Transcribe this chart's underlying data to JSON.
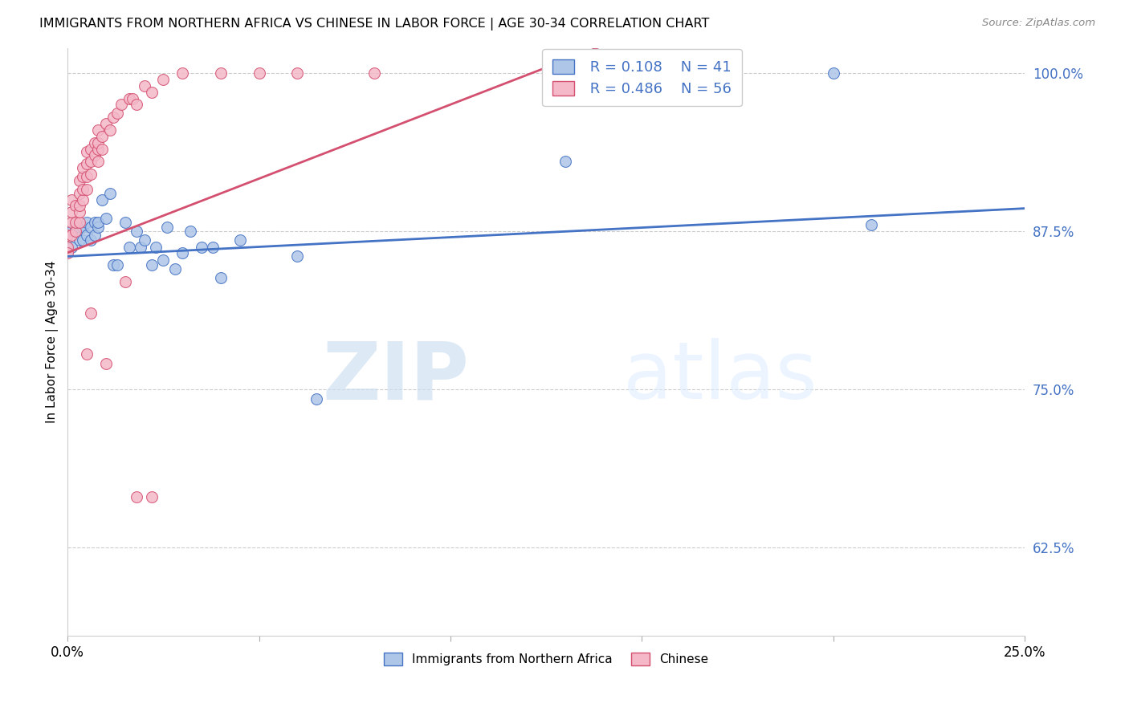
{
  "title": "IMMIGRANTS FROM NORTHERN AFRICA VS CHINESE IN LABOR FORCE | AGE 30-34 CORRELATION CHART",
  "source": "Source: ZipAtlas.com",
  "ylabel": "In Labor Force | Age 30-34",
  "xlim": [
    0.0,
    0.25
  ],
  "ylim": [
    0.555,
    1.02
  ],
  "yticks": [
    0.625,
    0.75,
    0.875,
    1.0
  ],
  "ytick_labels": [
    "62.5%",
    "75.0%",
    "87.5%",
    "100.0%"
  ],
  "xticks": [
    0.0,
    0.05,
    0.1,
    0.15,
    0.2,
    0.25
  ],
  "xtick_labels": [
    "0.0%",
    "",
    "",
    "",
    "",
    "25.0%"
  ],
  "blue_R": "R = 0.108",
  "blue_N": "N = 41",
  "pink_R": "R = 0.486",
  "pink_N": "N = 56",
  "blue_color": "#aec6e8",
  "pink_color": "#f4b8c8",
  "blue_line_color": "#4472c4",
  "pink_line_color": "#d45070",
  "legend_label_blue": "Immigrants from Northern Africa",
  "legend_label_pink": "Chinese",
  "watermark_zip": "ZIP",
  "watermark_atlas": "atlas",
  "blue_points_x": [
    0.001,
    0.001,
    0.002,
    0.003,
    0.003,
    0.004,
    0.004,
    0.005,
    0.005,
    0.006,
    0.006,
    0.007,
    0.007,
    0.008,
    0.008,
    0.009,
    0.01,
    0.011,
    0.012,
    0.013,
    0.015,
    0.016,
    0.018,
    0.019,
    0.02,
    0.022,
    0.023,
    0.025,
    0.026,
    0.028,
    0.03,
    0.032,
    0.035,
    0.038,
    0.04,
    0.045,
    0.06,
    0.065,
    0.13,
    0.2,
    0.21
  ],
  "blue_points_y": [
    0.862,
    0.875,
    0.878,
    0.868,
    0.878,
    0.868,
    0.878,
    0.872,
    0.882,
    0.878,
    0.868,
    0.882,
    0.872,
    0.878,
    0.882,
    0.9,
    0.885,
    0.905,
    0.848,
    0.848,
    0.882,
    0.862,
    0.875,
    0.862,
    0.868,
    0.848,
    0.862,
    0.852,
    0.878,
    0.845,
    0.858,
    0.875,
    0.862,
    0.862,
    0.838,
    0.868,
    0.855,
    0.742,
    0.93,
    1.0,
    0.88
  ],
  "pink_points_x": [
    0.0,
    0.0,
    0.0,
    0.001,
    0.001,
    0.001,
    0.001,
    0.002,
    0.002,
    0.002,
    0.003,
    0.003,
    0.003,
    0.003,
    0.003,
    0.004,
    0.004,
    0.004,
    0.004,
    0.005,
    0.005,
    0.005,
    0.005,
    0.006,
    0.006,
    0.006,
    0.007,
    0.007,
    0.008,
    0.008,
    0.008,
    0.008,
    0.009,
    0.009,
    0.01,
    0.011,
    0.012,
    0.013,
    0.014,
    0.016,
    0.017,
    0.018,
    0.02,
    0.022,
    0.025,
    0.03,
    0.04,
    0.05,
    0.06,
    0.08,
    0.005,
    0.006,
    0.01,
    0.015,
    0.018,
    0.022
  ],
  "pink_points_y": [
    0.862,
    0.872,
    0.858,
    0.872,
    0.882,
    0.89,
    0.9,
    0.875,
    0.882,
    0.895,
    0.882,
    0.89,
    0.895,
    0.905,
    0.915,
    0.9,
    0.908,
    0.918,
    0.925,
    0.908,
    0.918,
    0.928,
    0.938,
    0.92,
    0.93,
    0.94,
    0.935,
    0.945,
    0.93,
    0.94,
    0.945,
    0.955,
    0.94,
    0.95,
    0.96,
    0.955,
    0.965,
    0.968,
    0.975,
    0.98,
    0.98,
    0.975,
    0.99,
    0.985,
    0.995,
    1.0,
    1.0,
    1.0,
    1.0,
    1.0,
    0.778,
    0.81,
    0.77,
    0.835,
    0.665,
    0.665
  ]
}
